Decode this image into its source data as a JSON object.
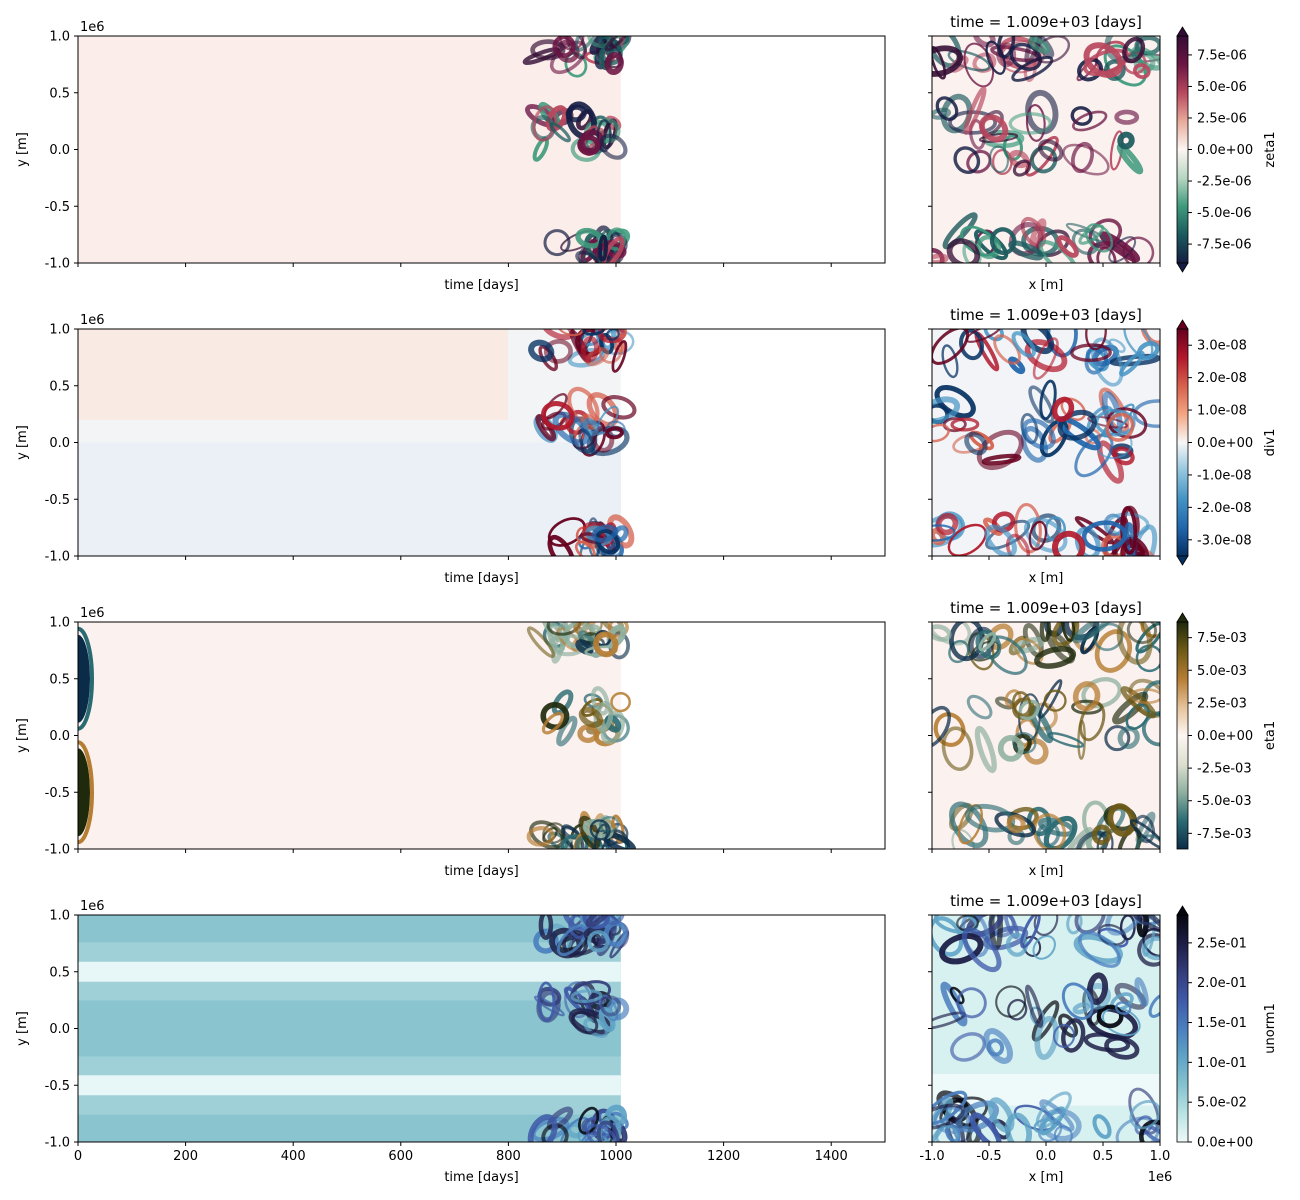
{
  "chart_data": [
    {
      "type": "heatmap",
      "panel": "hovmoller",
      "variable": "zeta1",
      "xlabel": "time [days]",
      "ylabel": "y [m]",
      "y_offset_text": "1e6",
      "xlim": [
        0,
        1500
      ],
      "ylim": [
        -1.0,
        1.0
      ],
      "x_ticks": [
        "0",
        "200",
        "400",
        "600",
        "800",
        "1000",
        "1200",
        "1400"
      ],
      "y_ticks": [
        "-1.0",
        "-0.5",
        "0.0",
        "0.5",
        "1.0"
      ],
      "data_end_time": 1009,
      "colormap": "curl"
    },
    {
      "type": "heatmap",
      "panel": "snapshot",
      "variable": "zeta1",
      "title": "time = 1.009e+03 [days]",
      "xlabel": "x [m]",
      "xlim": [
        -1.0,
        1.0
      ],
      "ylim": [
        -1.0,
        1.0
      ],
      "colorbar_label": "zeta1",
      "colorbar_ticks": [
        "7.5e-06",
        "5.0e-06",
        "2.5e-06",
        "0.0e+00",
        "-2.5e-06",
        "-5.0e-06",
        "-7.5e-06"
      ],
      "colorbar_values": [
        7.5e-06,
        5e-06,
        2.5e-06,
        0.0,
        -2.5e-06,
        -5e-06,
        -7.5e-06
      ],
      "colorbar_range": [
        -9e-06,
        9e-06
      ],
      "extend": "both",
      "colormap": "curl"
    },
    {
      "type": "heatmap",
      "panel": "hovmoller",
      "variable": "div1",
      "xlabel": "time [days]",
      "ylabel": "y [m]",
      "y_offset_text": "1e6",
      "xlim": [
        0,
        1500
      ],
      "ylim": [
        -1.0,
        1.0
      ],
      "x_ticks": [
        "0",
        "200",
        "400",
        "600",
        "800",
        "1000",
        "1200",
        "1400"
      ],
      "y_ticks": [
        "-1.0",
        "-0.5",
        "0.0",
        "0.5",
        "1.0"
      ],
      "data_end_time": 1009,
      "colormap": "RdBu_r"
    },
    {
      "type": "heatmap",
      "panel": "snapshot",
      "variable": "div1",
      "title": "time = 1.009e+03 [days]",
      "xlabel": "x [m]",
      "xlim": [
        -1.0,
        1.0
      ],
      "ylim": [
        -1.0,
        1.0
      ],
      "colorbar_label": "div1",
      "colorbar_ticks": [
        "3.0e-08",
        "2.0e-08",
        "1.0e-08",
        "0.0e+00",
        "-1.0e-08",
        "-2.0e-08",
        "-3.0e-08"
      ],
      "colorbar_values": [
        3e-08,
        2e-08,
        1e-08,
        0.0,
        -1e-08,
        -2e-08,
        -3e-08
      ],
      "colorbar_range": [
        -3.5e-08,
        3.5e-08
      ],
      "extend": "both",
      "colormap": "RdBu_r"
    },
    {
      "type": "heatmap",
      "panel": "hovmoller",
      "variable": "eta1",
      "xlabel": "time [days]",
      "ylabel": "y [m]",
      "y_offset_text": "1e6",
      "xlim": [
        0,
        1500
      ],
      "ylim": [
        -1.0,
        1.0
      ],
      "x_ticks": [
        "0",
        "200",
        "400",
        "600",
        "800",
        "1000",
        "1200",
        "1400"
      ],
      "y_ticks": [
        "-1.0",
        "-0.5",
        "0.0",
        "0.5",
        "1.0"
      ],
      "data_end_time": 1009,
      "colormap": "tarn_r"
    },
    {
      "type": "heatmap",
      "panel": "snapshot",
      "variable": "eta1",
      "title": "time = 1.009e+03 [days]",
      "xlabel": "x [m]",
      "xlim": [
        -1.0,
        1.0
      ],
      "ylim": [
        -1.0,
        1.0
      ],
      "colorbar_label": "eta1",
      "colorbar_ticks": [
        "7.5e-03",
        "5.0e-03",
        "2.5e-03",
        "0.0e+00",
        "-2.5e-03",
        "-5.0e-03",
        "-7.5e-03"
      ],
      "colorbar_values": [
        0.0075,
        0.005,
        0.0025,
        0.0,
        -0.0025,
        -0.005,
        -0.0075
      ],
      "colorbar_range": [
        -0.0087,
        0.0087
      ],
      "extend": "max",
      "colormap": "tarn_r"
    },
    {
      "type": "heatmap",
      "panel": "hovmoller",
      "variable": "unorm1",
      "xlabel": "time [days]",
      "ylabel": "y [m]",
      "y_offset_text": "1e6",
      "xlim": [
        0,
        1500
      ],
      "ylim": [
        -1.0,
        1.0
      ],
      "x_ticks": [
        "0",
        "200",
        "400",
        "600",
        "800",
        "1000",
        "1200",
        "1400"
      ],
      "y_ticks": [
        "-1.0",
        "-0.5",
        "0.0",
        "0.5",
        "1.0"
      ],
      "data_end_time": 1009,
      "colormap": "ice_r"
    },
    {
      "type": "heatmap",
      "panel": "snapshot",
      "variable": "unorm1",
      "title": "time = 1.009e+03 [days]",
      "xlabel": "x [m]",
      "x_ticks": [
        "-1.0",
        "-0.5",
        "0.0",
        "0.5",
        "1.0"
      ],
      "x_offset_text": "1e6",
      "xlim": [
        -1.0,
        1.0
      ],
      "ylim": [
        -1.0,
        1.0
      ],
      "colorbar_label": "unorm1",
      "colorbar_ticks": [
        "2.5e-01",
        "2.0e-01",
        "1.5e-01",
        "1.0e-01",
        "5.0e-02",
        "0.0e+00"
      ],
      "colorbar_values": [
        0.25,
        0.2,
        0.15,
        0.1,
        0.05,
        0.0
      ],
      "colorbar_range": [
        0.0,
        0.285
      ],
      "extend": "max",
      "colormap": "ice_r"
    }
  ]
}
